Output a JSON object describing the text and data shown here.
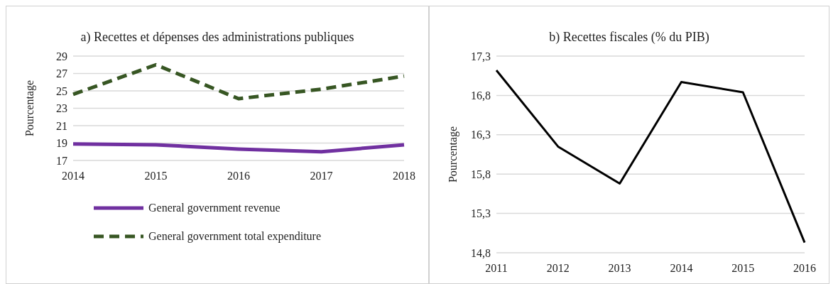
{
  "chart_data": [
    {
      "type": "line",
      "title": "a) Recettes et dépenses des administrations publiques",
      "ylabel": "Pourcentage",
      "categories": [
        "2014",
        "2015",
        "2016",
        "2017",
        "2018"
      ],
      "series": [
        {
          "name": "General government revenue",
          "color": "#7030a0",
          "line_style": "solid",
          "values": [
            18.9,
            18.8,
            18.3,
            18.0,
            18.8
          ]
        },
        {
          "name": "General government total expenditure",
          "color": "#375623",
          "line_style": "dashed",
          "values": [
            24.6,
            28.0,
            24.1,
            25.2,
            26.7
          ]
        }
      ],
      "ylim": [
        17,
        29
      ],
      "yticks": [
        17,
        19,
        21,
        23,
        25,
        27,
        29
      ],
      "grid": "y",
      "legend": "bottom",
      "marker": "none"
    },
    {
      "type": "line",
      "title": "b) Recettes fiscales (% du PIB)",
      "ylabel": "Pourcentage",
      "categories": [
        "2011",
        "2012",
        "2013",
        "2014",
        "2015",
        "2016"
      ],
      "series": [
        {
          "color": "#000000",
          "values": [
            17.12,
            16.15,
            15.68,
            16.97,
            16.84,
            14.93
          ]
        }
      ],
      "ylim": [
        14.8,
        17.3
      ],
      "yticks": [
        {
          "value": 14.8,
          "label": "14,8"
        },
        {
          "value": 15.3,
          "label": "15,3"
        },
        {
          "value": 15.8,
          "label": "15,8"
        },
        {
          "value": 16.3,
          "label": "16,3"
        },
        {
          "value": 16.8,
          "label": "16,8"
        },
        {
          "value": 17.3,
          "label": "17,3"
        }
      ],
      "grid": "y",
      "legend": false,
      "marker": "none"
    }
  ]
}
